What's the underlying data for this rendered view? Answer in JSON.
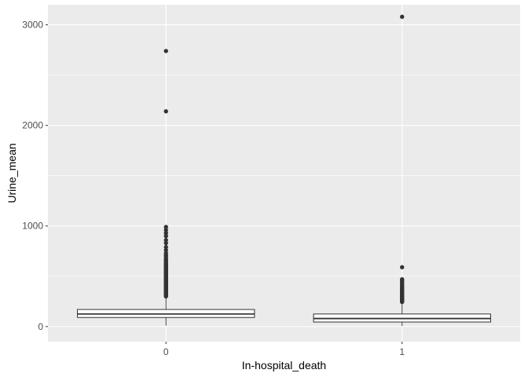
{
  "chart_data": {
    "type": "boxplot",
    "xlabel": "In-hospital_death",
    "ylabel": "Urine_mean",
    "categories": [
      "0",
      "1"
    ],
    "ylim": [
      -150,
      3200
    ],
    "yticks": [
      0,
      1000,
      2000,
      3000
    ],
    "yticklabels": [
      "0",
      "1000",
      "2000",
      "3000"
    ],
    "grid": true,
    "series": [
      {
        "category": "0",
        "whisker_low": 10,
        "q1": 90,
        "median": 125,
        "q3": 170,
        "whisker_high": 290,
        "outliers": [
          300,
          305,
          310,
          315,
          320,
          325,
          330,
          335,
          340,
          345,
          350,
          355,
          360,
          365,
          370,
          375,
          380,
          385,
          390,
          395,
          400,
          405,
          410,
          415,
          420,
          425,
          430,
          435,
          440,
          445,
          450,
          455,
          460,
          465,
          470,
          475,
          480,
          485,
          490,
          495,
          500,
          505,
          510,
          515,
          520,
          525,
          530,
          535,
          540,
          545,
          550,
          555,
          560,
          565,
          570,
          575,
          580,
          585,
          590,
          595,
          600,
          605,
          610,
          615,
          620,
          625,
          630,
          640,
          650,
          660,
          670,
          680,
          700,
          710,
          730,
          760,
          790,
          830,
          860,
          900,
          930,
          960,
          990,
          2140,
          2740
        ]
      },
      {
        "category": "1",
        "whisker_low": 5,
        "q1": 45,
        "median": 80,
        "q3": 125,
        "whisker_high": 235,
        "outliers": [
          245,
          250,
          255,
          260,
          265,
          270,
          275,
          280,
          285,
          290,
          295,
          300,
          310,
          320,
          330,
          340,
          350,
          360,
          370,
          380,
          390,
          400,
          415,
          430,
          445,
          460,
          470,
          590,
          3080
        ]
      }
    ],
    "colors": {
      "panel_background": "#ebebeb",
      "grid_major": "#ffffff",
      "box_fill": "#ffffff",
      "box_stroke": "#333333",
      "outlier": "#333333"
    }
  }
}
